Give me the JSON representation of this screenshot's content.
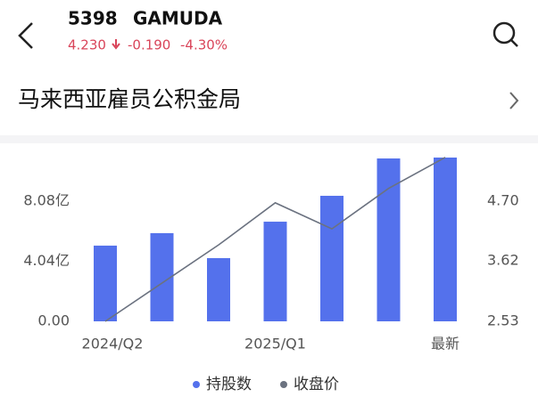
{
  "header": {
    "symbol": "5398",
    "name": "GAMUDA",
    "price": "4.230",
    "change": "-0.190",
    "change_pct": "-4.30%"
  },
  "title": "马来西亚雇员公积金局",
  "chart_data": {
    "type": "bar",
    "categories": [
      "2024/Q2",
      null,
      null,
      "2025/Q1",
      null,
      null,
      "最新"
    ],
    "series": [
      {
        "name": "持股数",
        "type": "bar",
        "color": "#5471ec",
        "values": [
          5.09,
          5.93,
          4.25,
          6.7,
          8.44,
          10.95,
          11.01
        ]
      },
      {
        "name": "收盘价",
        "type": "line",
        "axis": "y2",
        "color": "#6b7280",
        "values": [
          2.53,
          3.22,
          3.91,
          4.67,
          4.2,
          4.93,
          5.49
        ]
      }
    ],
    "ylim": [
      0,
      11.43
    ],
    "yticks": [
      {
        "value": 0,
        "label": "0.00"
      },
      {
        "value": 4.04,
        "label": "4.04亿"
      },
      {
        "value": 8.08,
        "label": "8.08亿"
      }
    ],
    "y2lim": [
      2.53,
      5.6
    ],
    "y2ticks": [
      {
        "value": 2.53,
        "label": "2.53"
      },
      {
        "value": 3.62,
        "label": "3.62"
      },
      {
        "value": 4.7,
        "label": "4.70"
      }
    ]
  }
}
